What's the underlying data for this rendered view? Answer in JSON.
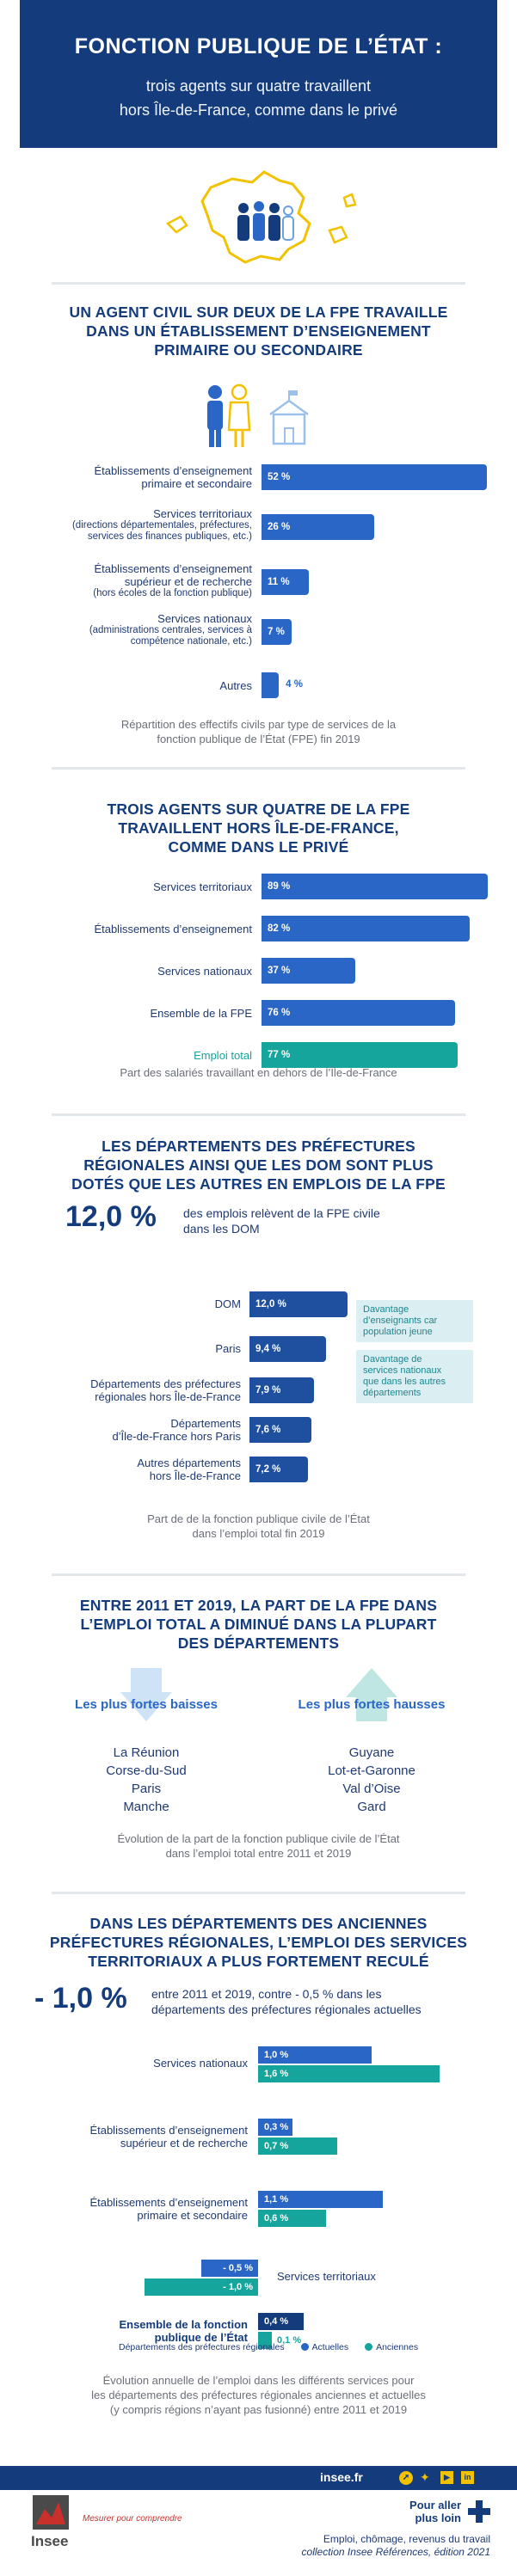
{
  "header": {
    "title": "FONCTION PUBLIQUE DE L’ÉTAT :",
    "subtitle_1": "trois agents sur quatre travaillent",
    "subtitle_2": "hors Île-de-France, comme dans le privé"
  },
  "colors": {
    "navy": "#143c7d",
    "blue": "#2a66c6",
    "teal": "#16a59c",
    "yellow": "#f2c200",
    "light_teal": "#dbeef2"
  },
  "section1": {
    "title_1": "UN AGENT CIVIL SUR DEUX DE LA FPE TRAVAILLE",
    "title_2": "DANS UN ÉTABLISSEMENT D’ENSEIGNEMENT",
    "title_3": "PRIMAIRE OU SECONDAIRE",
    "caption_1": "Répartition des effectifs civils par type de services de la",
    "caption_2": "fonction publique de l’État (FPE) fin 2019",
    "rows": [
      {
        "label_1": "Établissements d’enseignement",
        "label_2": "primaire et secondaire",
        "note_1": "",
        "note_2": "",
        "value": 52,
        "value_label": "52 %"
      },
      {
        "label_1": "Services territoriaux",
        "label_2": "",
        "note_1": "(directions départementales, préfectures,",
        "note_2": "services des finances publiques, etc.)",
        "value": 26,
        "value_label": "26 %"
      },
      {
        "label_1": "Établissements d’enseignement",
        "label_2": "supérieur et de recherche",
        "note_1": "(hors écoles de la fonction publique)",
        "note_2": "",
        "value": 11,
        "value_label": "11 %"
      },
      {
        "label_1": "Services nationaux",
        "label_2": "",
        "note_1": "(administrations centrales, services à",
        "note_2": "compétence nationale, etc.)",
        "value": 7,
        "value_label": "7 %"
      },
      {
        "label_1": "Autres",
        "label_2": "",
        "note_1": "",
        "note_2": "",
        "value": 4,
        "value_label": "4 %"
      }
    ]
  },
  "section2": {
    "title_1": "TROIS AGENTS SUR QUATRE DE LA FPE",
    "title_2": "TRAVAILLENT HORS ÎLE-DE-FRANCE,",
    "title_3": "COMME DANS LE PRIVÉ",
    "caption": "Part des salariés travaillant en dehors de l’Île-de-France",
    "rows": [
      {
        "label": "Services territoriaux",
        "value": 89,
        "value_label": "89 %"
      },
      {
        "label": "Établissements d’enseignement",
        "value": 82,
        "value_label": "82 %"
      },
      {
        "label": "Services nationaux",
        "value": 37,
        "value_label": "37 %"
      },
      {
        "label": "Ensemble de la FPE",
        "value": 76,
        "value_label": "76 %"
      },
      {
        "label": "Emploi total",
        "value": 77,
        "value_label": "77 %"
      }
    ]
  },
  "section3": {
    "title_1": "LES DÉPARTEMENTS DES PRÉFECTURES",
    "title_2": "RÉGIONALES AINSI QUE LES DOM SONT PLUS",
    "title_3": "DOTÉS QUE LES AUTRES EN EMPLOIS DE LA FPE",
    "big_value": "12,0 %",
    "big_text_1": "des emplois relèvent de la FPE civile",
    "big_text_2": "dans les DOM",
    "note_a_1": "Davantage",
    "note_a_2": "d’enseignants car",
    "note_a_3": "population jeune",
    "note_b_1": "Davantage de",
    "note_b_2": "services nationaux",
    "note_b_3": "que dans les autres",
    "note_b_4": "départements",
    "caption_1": "Part de de la fonction publique civile de l’État",
    "caption_2": "dans l’emploi total fin 2019",
    "rows": [
      {
        "label_1": "DOM",
        "label_2": "",
        "value": 12.0,
        "value_label": "12,0 %"
      },
      {
        "label_1": "Paris",
        "label_2": "",
        "value": 9.4,
        "value_label": "9,4 %"
      },
      {
        "label_1": "Départements des préfectures",
        "label_2": "régionales hors Île-de-France",
        "value": 7.9,
        "value_label": "7,9 %"
      },
      {
        "label_1": "Départements",
        "label_2": "d’Île-de-France hors Paris",
        "value": 7.6,
        "value_label": "7,6 %"
      },
      {
        "label_1": "Autres départements",
        "label_2": "hors Île-de-France",
        "value": 7.2,
        "value_label": "7,2 %"
      }
    ]
  },
  "section4": {
    "title_1": "ENTRE 2011 ET 2019, LA PART DE LA FPE DANS",
    "title_2": "L’EMPLOI TOTAL A DIMINUÉ DANS LA PLUPART",
    "title_3": "DES DÉPARTEMENTS",
    "lowest_title": "Les plus fortes baisses",
    "lowest": [
      "La Réunion",
      "Corse-du-Sud",
      "Paris",
      "Manche"
    ],
    "highest_title": "Les plus fortes hausses",
    "highest": [
      "Guyane",
      "Lot-et-Garonne",
      "Val d’Oise",
      "Gard"
    ],
    "caption_1": "Évolution de la part de la fonction publique civile de l’État",
    "caption_2": "dans l’emploi total entre 2011 et 2019"
  },
  "section5": {
    "title_1": "DANS LES DÉPARTEMENTS DES ANCIENNES",
    "title_2": "PRÉFECTURES RÉGIONALES, L’EMPLOI DES SERVICES",
    "title_3": "TERRITORIAUX A PLUS FORTEMENT RECULÉ",
    "big_value": "- 1,0 %",
    "big_text_1": "entre 2011 et 2019, contre - 0,5 % dans les",
    "big_text_2": "départements des préfectures régionales actuelles",
    "legend_title": "Départements des préfectures régionales",
    "legend_current": "Actuelles",
    "legend_former": "Anciennes",
    "caption_1": "Évolution annuelle de l’emploi dans les différents services pour",
    "caption_2": "les départements des préfectures régionales anciennes et actuelles",
    "caption_3": "(y compris régions n’ayant pas fusionné) entre 2011 et 2019",
    "rows": [
      {
        "label_1": "Services nationaux",
        "label_2": "",
        "current": 1.0,
        "current_label": "1,0 %",
        "former": 1.6,
        "former_label": "1,6 %"
      },
      {
        "label_1": "Établissements d’enseignement",
        "label_2": "supérieur et de recherche",
        "current": 0.3,
        "current_label": "0,3 %",
        "former": 0.7,
        "former_label": "0,7 %"
      },
      {
        "label_1": "Établissements d’enseignement",
        "label_2": "primaire et secondaire",
        "current": 1.1,
        "current_label": "1,1 %",
        "former": 0.6,
        "former_label": "0,6 %"
      },
      {
        "label_1": "Services territoriaux",
        "label_2": "",
        "current": -0.5,
        "current_label": "- 0,5 %",
        "former": -1.0,
        "former_label": "- 1,0 %"
      },
      {
        "label_1": "Ensemble de la fonction",
        "label_2": "publique de l’État",
        "current": 0.4,
        "current_label": "0,4 %",
        "former": 0.1,
        "former_label": "0,1 %"
      }
    ]
  },
  "footer": {
    "site": "insee.fr",
    "more_1": "Pour aller",
    "more_2": "plus loin",
    "ref_1": "Emploi, chômage, revenus du travail",
    "ref_2": "collection Insee Références, édition 2021",
    "logo_text": "Insee",
    "tagline": "Mesurer pour comprendre"
  }
}
